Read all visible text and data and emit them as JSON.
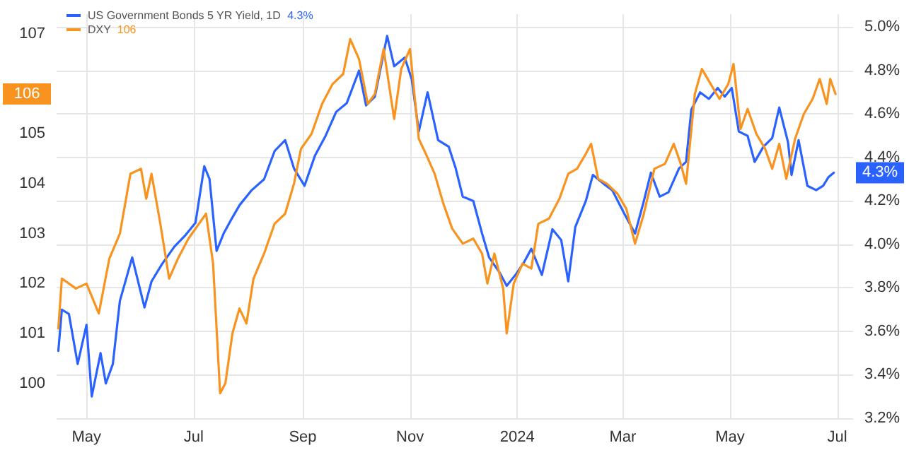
{
  "chart_data": {
    "type": "line",
    "grid": true,
    "legend": "top left",
    "line_style": "solid",
    "marker": "none",
    "xlim": [
      "2023-04-14",
      "2024-07-10"
    ],
    "xticks": [
      {
        "value": "2023-05-01",
        "label": "May"
      },
      {
        "value": "2023-07-01",
        "label": "Jul"
      },
      {
        "value": "2023-09-01",
        "label": "Sep"
      },
      {
        "value": "2023-11-01",
        "label": "Nov"
      },
      {
        "value": "2024-01-01",
        "label": "2024"
      },
      {
        "value": "2024-03-01",
        "label": "Mar"
      },
      {
        "value": "2024-05-01",
        "label": "May"
      },
      {
        "value": "2024-07-01",
        "label": "Jul"
      }
    ],
    "ylim": [
      99.3,
      107.4
    ],
    "yticks": [
      100,
      101,
      102,
      103,
      104,
      105,
      107
    ],
    "y2lim": [
      3.2,
      5.06
    ],
    "y2ticks": [
      {
        "value": 3.2,
        "label": "3.2%"
      },
      {
        "value": 3.4,
        "label": "3.4%"
      },
      {
        "value": 3.6,
        "label": "3.6%"
      },
      {
        "value": 3.8,
        "label": "3.8%"
      },
      {
        "value": 4.0,
        "label": "4.0%"
      },
      {
        "value": 4.2,
        "label": "4.2%"
      },
      {
        "value": 4.4,
        "label": "4.4%"
      },
      {
        "value": 4.6,
        "label": "4.6%"
      },
      {
        "value": 4.8,
        "label": "4.8%"
      },
      {
        "value": 5.0,
        "label": "5.0%"
      }
    ],
    "annotations": [
      "4.3%",
      "106"
    ],
    "series": [
      {
        "name": "US Government Bonds 5 YR Yield, 1D",
        "color": "#2962ff",
        "axis": "y2",
        "x": [
          "2023-04-15",
          "2023-04-17",
          "2023-04-21",
          "2023-04-26",
          "2023-05-01",
          "2023-05-04",
          "2023-05-09",
          "2023-05-12",
          "2023-05-16",
          "2023-05-20",
          "2023-05-27",
          "2023-06-03",
          "2023-06-07",
          "2023-06-13",
          "2023-06-20",
          "2023-06-26",
          "2023-07-02",
          "2023-07-07",
          "2023-07-10",
          "2023-07-14",
          "2023-07-18",
          "2023-07-22",
          "2023-07-27",
          "2023-08-03",
          "2023-08-10",
          "2023-08-16",
          "2023-08-22",
          "2023-08-27",
          "2023-09-02",
          "2023-09-08",
          "2023-09-14",
          "2023-09-20",
          "2023-09-26",
          "2023-10-03",
          "2023-10-07",
          "2023-10-12",
          "2023-10-19",
          "2023-10-23",
          "2023-10-29",
          "2023-11-02",
          "2023-11-06",
          "2023-11-11",
          "2023-11-17",
          "2023-11-23",
          "2023-11-27",
          "2023-12-01",
          "2023-12-07",
          "2023-12-12",
          "2023-12-16",
          "2023-12-22",
          "2023-12-26",
          "2023-12-31",
          "2024-01-05",
          "2024-01-09",
          "2024-01-15",
          "2024-01-21",
          "2024-01-26",
          "2024-01-30",
          "2024-02-03",
          "2024-02-09",
          "2024-02-13",
          "2024-02-19",
          "2024-02-24",
          "2024-03-02",
          "2024-03-08",
          "2024-03-13",
          "2024-03-17",
          "2024-03-22",
          "2024-03-27",
          "2024-04-02",
          "2024-04-06",
          "2024-04-09",
          "2024-04-14",
          "2024-04-19",
          "2024-04-24",
          "2024-04-28",
          "2024-05-02",
          "2024-05-06",
          "2024-05-11",
          "2024-05-15",
          "2024-05-20",
          "2024-05-25",
          "2024-05-29",
          "2024-06-03",
          "2024-06-05",
          "2024-06-09",
          "2024-06-14",
          "2024-06-19",
          "2024-06-23",
          "2024-06-26",
          "2024-06-29"
        ],
        "values": [
          3.51,
          3.7,
          3.68,
          3.45,
          3.63,
          3.3,
          3.5,
          3.36,
          3.45,
          3.74,
          3.94,
          3.71,
          3.83,
          3.91,
          3.99,
          4.04,
          4.1,
          4.36,
          4.3,
          3.97,
          4.05,
          4.11,
          4.18,
          4.25,
          4.3,
          4.43,
          4.48,
          4.35,
          4.27,
          4.41,
          4.5,
          4.61,
          4.65,
          4.8,
          4.64,
          4.68,
          4.96,
          4.82,
          4.86,
          4.76,
          4.52,
          4.7,
          4.48,
          4.45,
          4.35,
          4.22,
          4.2,
          4.05,
          3.94,
          3.87,
          3.81,
          3.86,
          3.92,
          3.98,
          3.86,
          4.07,
          4.02,
          3.83,
          4.08,
          4.2,
          4.32,
          4.28,
          4.25,
          4.14,
          4.05,
          4.2,
          4.33,
          4.22,
          4.24,
          4.35,
          4.38,
          4.62,
          4.7,
          4.67,
          4.72,
          4.68,
          4.72,
          4.52,
          4.5,
          4.38,
          4.45,
          4.49,
          4.63,
          4.47,
          4.32,
          4.48,
          4.27,
          4.25,
          4.27,
          4.31,
          4.33
        ]
      },
      {
        "name": "DXY",
        "color": "#f7931e",
        "x": [
          "2023-04-15",
          "2023-04-17",
          "2023-04-25",
          "2023-05-01",
          "2023-05-08",
          "2023-05-14",
          "2023-05-20",
          "2023-05-26",
          "2023-06-01",
          "2023-06-04",
          "2023-06-07",
          "2023-06-12",
          "2023-06-17",
          "2023-06-22",
          "2023-06-28",
          "2023-07-04",
          "2023-07-08",
          "2023-07-12",
          "2023-07-16",
          "2023-07-19",
          "2023-07-23",
          "2023-07-27",
          "2023-07-31",
          "2023-08-04",
          "2023-08-10",
          "2023-08-16",
          "2023-08-22",
          "2023-08-27",
          "2023-08-31",
          "2023-09-06",
          "2023-09-12",
          "2023-09-18",
          "2023-09-24",
          "2023-09-28",
          "2023-10-03",
          "2023-10-08",
          "2023-10-12",
          "2023-10-17",
          "2023-10-23",
          "2023-10-27",
          "2023-11-01",
          "2023-11-06",
          "2023-11-10",
          "2023-11-15",
          "2023-11-20",
          "2023-11-25",
          "2023-12-01",
          "2023-12-07",
          "2023-12-12",
          "2023-12-15",
          "2023-12-19",
          "2023-12-24",
          "2023-12-26",
          "2023-12-30",
          "2024-01-04",
          "2024-01-09",
          "2024-01-13",
          "2024-01-19",
          "2024-01-25",
          "2024-01-30",
          "2024-02-04",
          "2024-02-09",
          "2024-02-12",
          "2024-02-16",
          "2024-02-21",
          "2024-02-27",
          "2024-03-03",
          "2024-03-08",
          "2024-03-13",
          "2024-03-19",
          "2024-03-25",
          "2024-03-30",
          "2024-04-03",
          "2024-04-06",
          "2024-04-11",
          "2024-04-15",
          "2024-04-20",
          "2024-04-25",
          "2024-04-30",
          "2024-05-03",
          "2024-05-07",
          "2024-05-11",
          "2024-05-16",
          "2024-05-21",
          "2024-05-25",
          "2024-05-29",
          "2024-06-02",
          "2024-06-07",
          "2024-06-12",
          "2024-06-17",
          "2024-06-21",
          "2024-06-25",
          "2024-06-27",
          "2024-06-30"
        ],
        "values": [
          101.1,
          102.1,
          101.9,
          102.0,
          101.4,
          102.5,
          103.0,
          104.2,
          104.3,
          103.7,
          104.2,
          103.2,
          102.1,
          102.5,
          102.9,
          103.2,
          103.4,
          102.4,
          99.8,
          100.0,
          101.0,
          101.5,
          101.2,
          102.1,
          102.6,
          103.2,
          103.4,
          104.0,
          104.7,
          105.0,
          105.6,
          106.0,
          106.2,
          106.9,
          106.5,
          105.6,
          105.8,
          106.7,
          105.3,
          106.3,
          106.7,
          104.9,
          104.6,
          104.2,
          103.6,
          103.1,
          102.8,
          102.9,
          102.6,
          102.0,
          102.6,
          101.9,
          101.0,
          102.0,
          102.4,
          102.3,
          103.2,
          103.3,
          103.7,
          104.2,
          104.3,
          104.6,
          104.8,
          104.1,
          104.0,
          103.8,
          103.5,
          102.8,
          103.4,
          104.3,
          104.4,
          104.8,
          104.4,
          104.0,
          105.8,
          106.3,
          106.0,
          105.7,
          106.0,
          106.4,
          105.1,
          105.5,
          105.0,
          104.7,
          104.3,
          104.8,
          104.1,
          104.9,
          105.4,
          105.7,
          106.1,
          105.6,
          106.1,
          105.8
        ]
      }
    ]
  }
}
